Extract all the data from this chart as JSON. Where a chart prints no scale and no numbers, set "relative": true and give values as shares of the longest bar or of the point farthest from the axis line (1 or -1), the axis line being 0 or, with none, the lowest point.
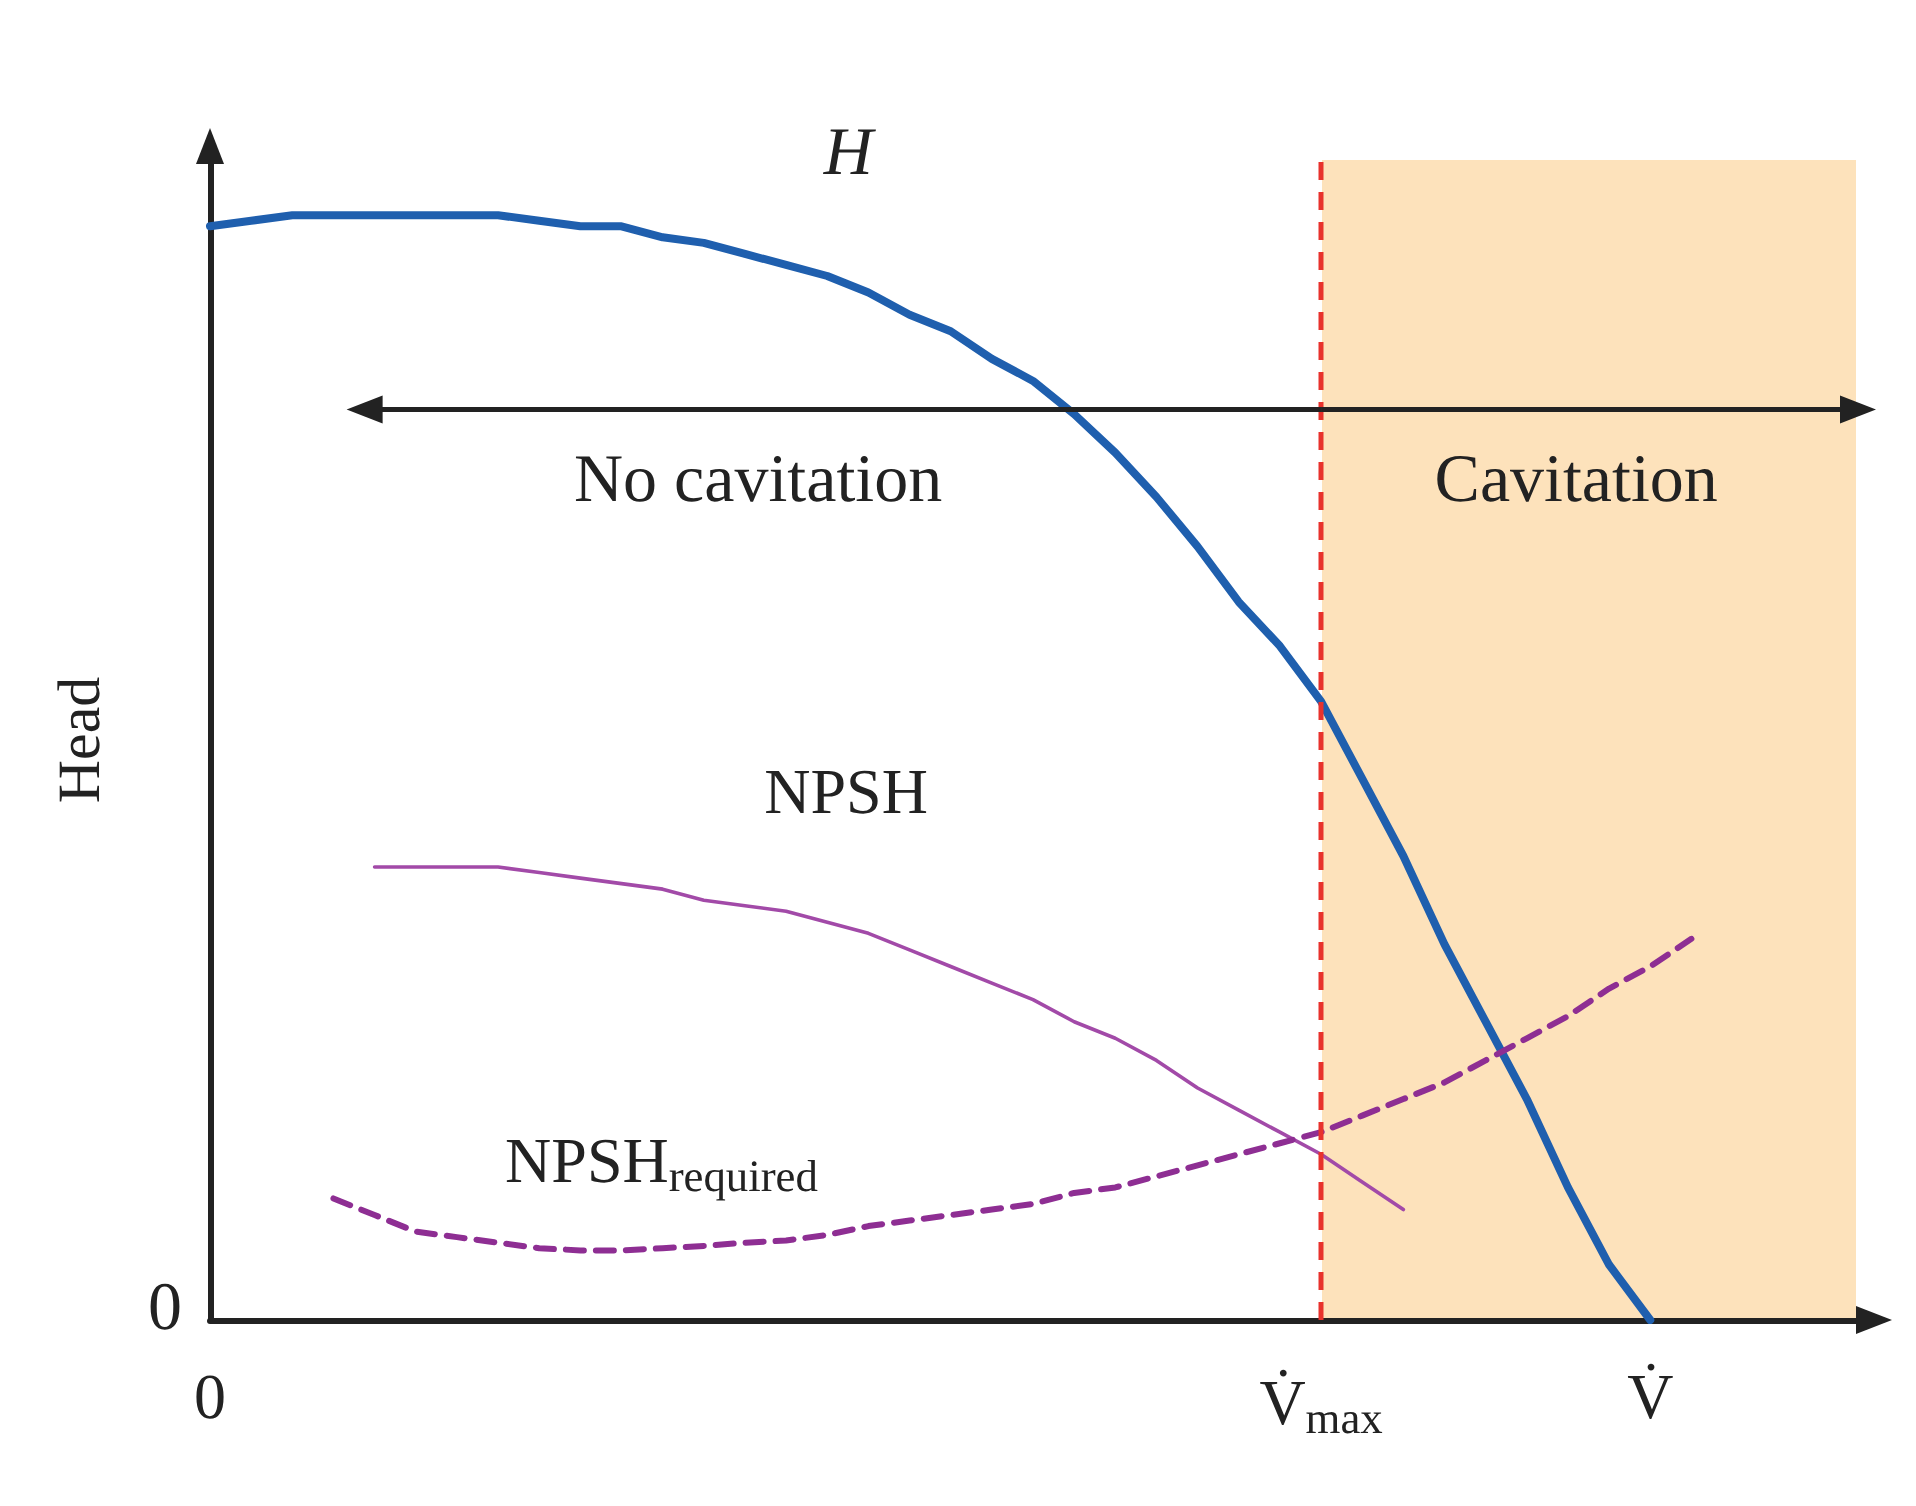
{
  "chart_data": {
    "type": "line",
    "relative": true,
    "ylabel": "Head",
    "categories": [
      "0",
      null,
      null,
      null,
      null,
      null,
      null,
      null,
      null,
      null,
      null,
      null,
      null,
      null,
      null,
      null,
      null,
      null,
      null,
      null,
      null,
      null,
      null,
      null,
      null,
      null,
      null,
      "V̇$_{max}$",
      null,
      null,
      null,
      null,
      null,
      null,
      null,
      "V̇",
      null,
      null,
      null,
      null,
      null
    ],
    "series": [
      {
        "name": "H",
        "color": "#1f5fae",
        "line_style": "solid",
        "values": [
          0.99,
          0.995,
          1,
          1,
          1,
          1,
          1,
          1,
          0.995,
          0.99,
          0.99,
          0.98,
          0.975,
          0.965,
          0.955,
          0.945,
          0.93,
          0.91,
          0.895,
          0.87,
          0.85,
          0.82,
          0.785,
          0.745,
          0.7,
          0.65,
          0.61,
          0.56,
          0.49,
          0.42,
          0.34,
          0.27,
          0.2,
          0.12,
          0.05,
          0,
          null,
          null,
          null,
          null,
          null
        ]
      },
      {
        "name": "NPSH",
        "color": "#a24aa8",
        "line_style": "solid",
        "values": [
          null,
          null,
          null,
          null,
          0.41,
          0.41,
          0.41,
          0.41,
          0.405,
          0.4,
          0.395,
          0.39,
          0.38,
          0.375,
          0.37,
          0.36,
          0.35,
          0.335,
          0.32,
          0.305,
          0.29,
          0.27,
          0.255,
          0.235,
          0.21,
          0.19,
          0.17,
          0.15,
          0.125,
          0.1,
          null,
          null,
          null,
          null,
          null,
          null,
          null,
          null,
          null,
          null,
          null
        ]
      },
      {
        "name": "NPSH$_{required}$",
        "color": "#8e2e93",
        "line_style": "dashed",
        "values": [
          null,
          null,
          null,
          0.11,
          0.095,
          0.08,
          0.075,
          0.07,
          0.065,
          0.063,
          0.063,
          0.065,
          0.067,
          0.07,
          0.072,
          0.077,
          0.085,
          0.09,
          0.095,
          0.1,
          0.105,
          0.115,
          0.12,
          0.13,
          0.14,
          0.15,
          0.16,
          0.17,
          0.185,
          0.2,
          0.215,
          0.235,
          0.255,
          0.275,
          0.3,
          0.32,
          0.345,
          null,
          null,
          null,
          null
        ]
      }
    ],
    "ref_lines": [
      {
        "axis": "x",
        "value": "V̇$_{max}$",
        "color": "#e8322c",
        "line_style": "dashed"
      }
    ],
    "annotations": [
      "No cavitation",
      "Cavitation",
      "0"
    ],
    "grid": false,
    "legend": false,
    "marker": "none"
  }
}
